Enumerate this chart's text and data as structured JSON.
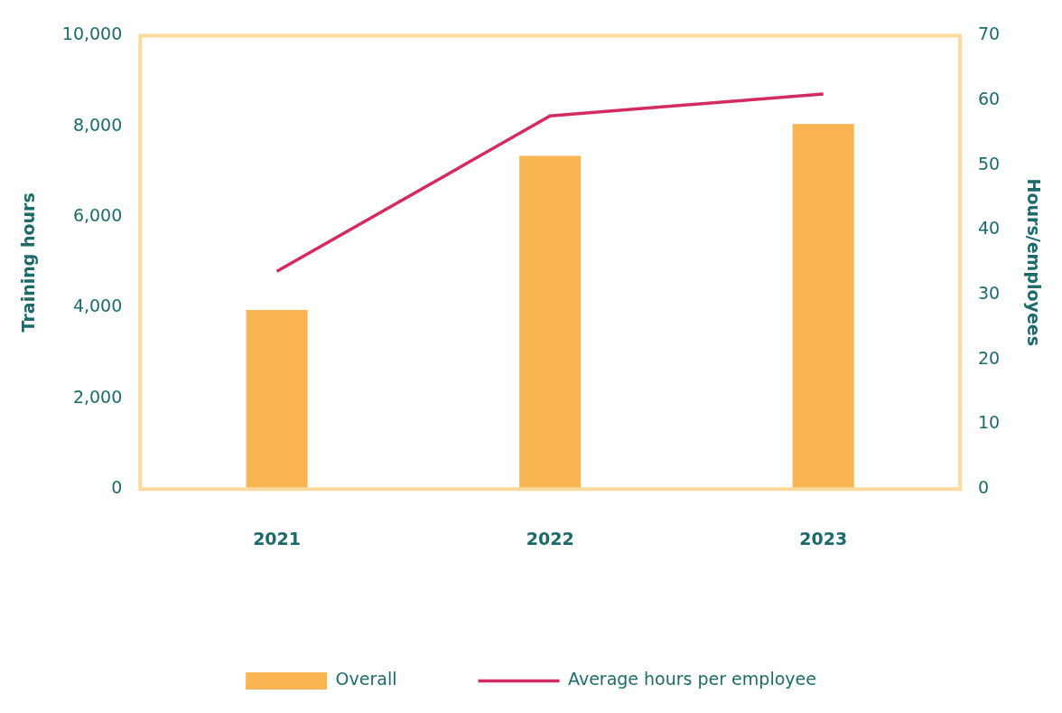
{
  "chart_data": {
    "type": "bar",
    "categories": [
      "2021",
      "2022",
      "2023"
    ],
    "ylabel": "Training hours",
    "y2label": "Hours/employees",
    "series": [
      {
        "name": "Overall",
        "color": "#f9b552",
        "values": [
          3950,
          7350,
          8050
        ]
      },
      {
        "name": "Average hours per employee",
        "type": "line",
        "axis": "y2",
        "color": "#d42b5e",
        "values": [
          33.6,
          57.6,
          61.0
        ]
      }
    ],
    "ylim": [
      0,
      10000
    ],
    "yticks": [
      {
        "value": 0,
        "label": "0"
      },
      {
        "value": 2000,
        "label": "2,000"
      },
      {
        "value": 4000,
        "label": "4,000"
      },
      {
        "value": 6000,
        "label": "6,000"
      },
      {
        "value": 8000,
        "label": "8,000"
      },
      {
        "value": 10000,
        "label": "10,000"
      }
    ],
    "y2lim": [
      0,
      70
    ],
    "y2ticks": [
      0,
      10,
      20,
      30,
      40,
      50,
      60,
      70
    ],
    "grid": false,
    "legend": "bottom",
    "marker": "none",
    "line_style": "solid"
  }
}
